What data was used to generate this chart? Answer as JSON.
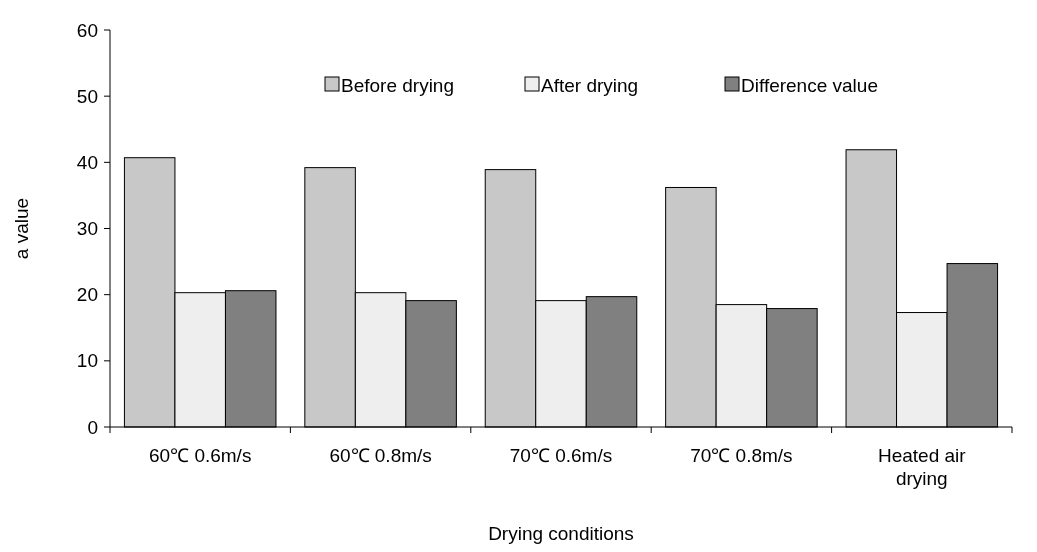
{
  "chart_data": {
    "type": "bar",
    "xlabel": "Drying conditions",
    "ylabel": "a value",
    "categories": [
      "60℃ 0.6m/s",
      "60℃ 0.8m/s",
      "70℃ 0.6m/s",
      "70℃ 0.8m/s",
      "Heated air drying"
    ],
    "series": [
      {
        "name": "Before drying",
        "color": "#c8c8c8",
        "values": [
          40.7,
          39.2,
          38.9,
          36.2,
          41.9
        ]
      },
      {
        "name": "After drying",
        "color": "#eeeeee",
        "values": [
          20.3,
          20.3,
          19.1,
          18.5,
          17.3
        ]
      },
      {
        "name": "Difference value",
        "color": "#808080",
        "values": [
          20.6,
          19.1,
          19.7,
          17.9,
          24.7
        ]
      }
    ],
    "ylim": [
      0,
      60
    ],
    "yticks": [
      0,
      10,
      20,
      30,
      40,
      50,
      60
    ],
    "grid": false,
    "legend": "top"
  }
}
